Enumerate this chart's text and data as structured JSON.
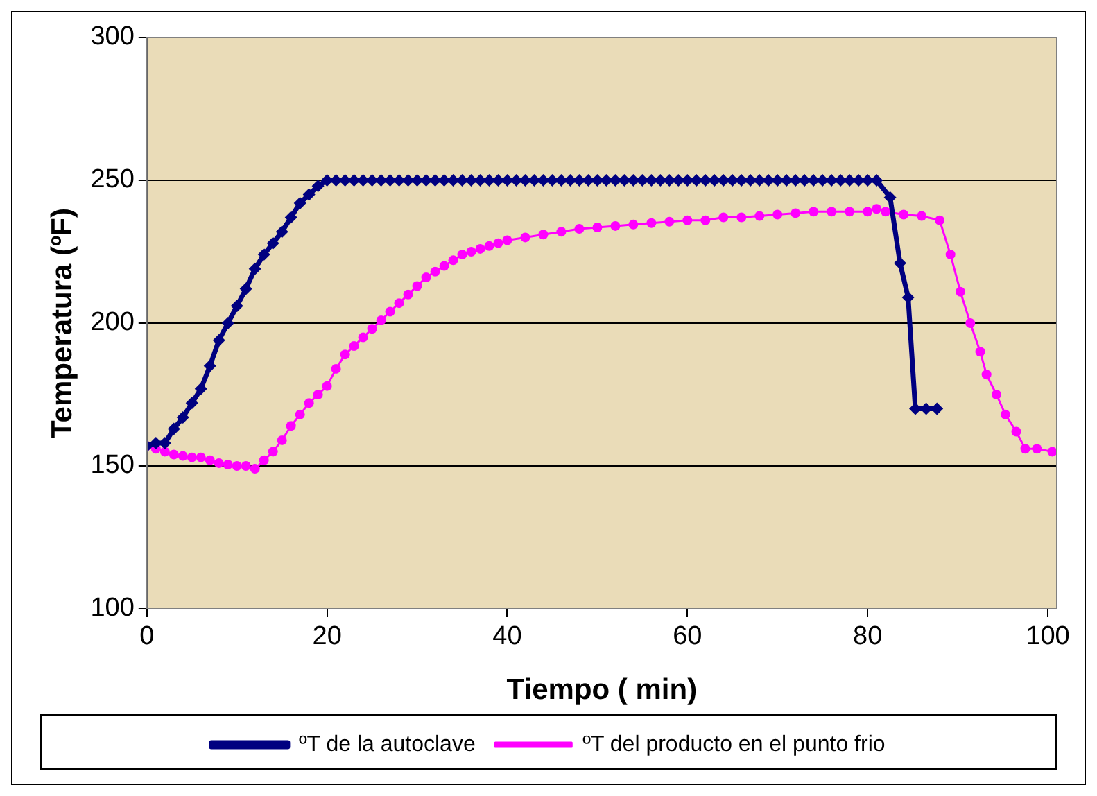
{
  "chart_data": {
    "type": "line",
    "xlabel": "Tiempo ( min)",
    "ylabel": "Temperatura (ºF)",
    "xlim": [
      0,
      101
    ],
    "xticks": [
      0,
      20,
      40,
      60,
      80,
      100
    ],
    "ylim": [
      100,
      300
    ],
    "yticks": [
      100,
      150,
      200,
      250,
      300
    ],
    "grid": "y",
    "legend": "bottom",
    "series": [
      {
        "name": "ºT de la autoclave",
        "color": "#000080",
        "marker": "diamond",
        "x": [
          0,
          1,
          2,
          3,
          4,
          5,
          6,
          7,
          8,
          9,
          10,
          11,
          12,
          13,
          14,
          15,
          16,
          17,
          18,
          19,
          20,
          21,
          22,
          23,
          24,
          25,
          26,
          27,
          28,
          29,
          30,
          31,
          32,
          33,
          34,
          35,
          36,
          37,
          38,
          39,
          40,
          41,
          42,
          43,
          44,
          45,
          46,
          47,
          48,
          49,
          50,
          51,
          52,
          53,
          54,
          55,
          56,
          57,
          58,
          59,
          60,
          61,
          62,
          63,
          64,
          65,
          66,
          67,
          68,
          69,
          70,
          71,
          72,
          73,
          74,
          75,
          76,
          77,
          78,
          79,
          80,
          81,
          82.5,
          83.6,
          84.5,
          85.3,
          86.5,
          87.7
        ],
        "values": [
          157,
          158,
          158,
          163,
          167,
          172,
          177,
          185,
          194,
          200,
          206,
          212,
          219,
          224,
          228,
          232,
          237,
          242,
          245,
          248,
          250,
          250,
          250,
          250,
          250,
          250,
          250,
          250,
          250,
          250,
          250,
          250,
          250,
          250,
          250,
          250,
          250,
          250,
          250,
          250,
          250,
          250,
          250,
          250,
          250,
          250,
          250,
          250,
          250,
          250,
          250,
          250,
          250,
          250,
          250,
          250,
          250,
          250,
          250,
          250,
          250,
          250,
          250,
          250,
          250,
          250,
          250,
          250,
          250,
          250,
          250,
          250,
          250,
          250,
          250,
          250,
          250,
          250,
          250,
          250,
          250,
          250,
          244,
          221,
          209,
          170,
          170,
          170
        ]
      },
      {
        "name": "ºT del producto en el punto frio",
        "color": "#ff00ff",
        "marker": "circle",
        "x": [
          0,
          1,
          2,
          3,
          4,
          5,
          6,
          7,
          8,
          9,
          10,
          11,
          12,
          13,
          14,
          15,
          16,
          17,
          18,
          19,
          20,
          21,
          22,
          23,
          24,
          25,
          26,
          27,
          28,
          29,
          30,
          31,
          32,
          33,
          34,
          35,
          36,
          37,
          38,
          39,
          40,
          42,
          44,
          46,
          48,
          50,
          52,
          54,
          56,
          58,
          60,
          62,
          64,
          66,
          68,
          70,
          72,
          74,
          76,
          78,
          80,
          81,
          82,
          84,
          86,
          88,
          89.2,
          90.3,
          91.4,
          92.5,
          93.2,
          94.3,
          95.3,
          96.5,
          97.5,
          98.8,
          100.5
        ],
        "values": [
          157,
          156,
          155,
          154,
          153.5,
          153,
          153,
          152,
          151,
          150.5,
          150,
          150,
          149,
          152,
          155,
          159,
          164,
          168,
          172,
          175,
          178,
          184,
          189,
          192,
          195,
          198,
          201,
          204,
          207,
          210,
          213,
          216,
          218,
          220,
          222,
          224,
          225,
          226,
          227,
          228,
          229,
          230,
          231,
          232,
          233,
          233.5,
          234,
          234.5,
          235,
          235.5,
          236,
          236,
          237,
          237,
          237.5,
          238,
          238.5,
          239,
          239,
          239,
          239,
          240,
          239,
          238,
          237.5,
          236,
          224,
          211,
          200,
          190,
          182,
          175,
          168,
          162,
          156,
          156,
          155
        ]
      }
    ]
  }
}
